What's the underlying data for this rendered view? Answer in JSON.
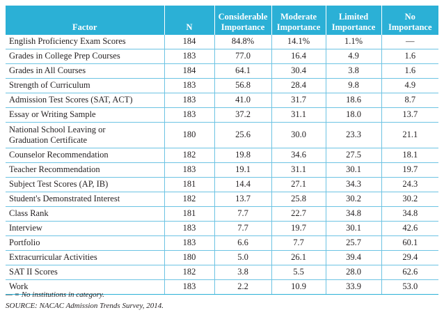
{
  "table": {
    "headers": {
      "factor": "Factor",
      "n": "N",
      "considerable": [
        "Considerable",
        "Importance"
      ],
      "moderate": [
        "Moderate",
        "Importance"
      ],
      "limited": [
        "Limited",
        "Importance"
      ],
      "no": [
        "No",
        "Importance"
      ]
    },
    "rows": [
      {
        "factor": "English Proficiency Exam Scores",
        "n": "184",
        "considerable": "84.8%",
        "moderate": "14.1%",
        "limited": "1.1%",
        "no": "—"
      },
      {
        "factor": "Grades in College Prep Courses",
        "n": "183",
        "considerable": "77.0",
        "moderate": "16.4",
        "limited": "4.9",
        "no": "1.6"
      },
      {
        "factor": "Grades in All Courses",
        "n": "184",
        "considerable": "64.1",
        "moderate": "30.4",
        "limited": "3.8",
        "no": "1.6"
      },
      {
        "factor": "Strength of Curriculum",
        "n": "183",
        "considerable": "56.8",
        "moderate": "28.4",
        "limited": "9.8",
        "no": "4.9"
      },
      {
        "factor": "Admission Test Scores (SAT, ACT)",
        "n": "183",
        "considerable": "41.0",
        "moderate": "31.7",
        "limited": "18.6",
        "no": "8.7"
      },
      {
        "factor": "Essay or Writing Sample",
        "n": "183",
        "considerable": "37.2",
        "moderate": "31.1",
        "limited": "18.0",
        "no": "13.7"
      },
      {
        "factor": "National School Leaving or Graduation Certificate",
        "factor_lines": [
          "National School Leaving or",
          "Graduation Certificate"
        ],
        "n": "180",
        "considerable": "25.6",
        "moderate": "30.0",
        "limited": "23.3",
        "no": "21.1",
        "tall": true
      },
      {
        "factor": "Counselor Recommendation",
        "n": "182",
        "considerable": "19.8",
        "moderate": "34.6",
        "limited": "27.5",
        "no": "18.1"
      },
      {
        "factor": "Teacher Recommendation",
        "n": "183",
        "considerable": "19.1",
        "moderate": "31.1",
        "limited": "30.1",
        "no": "19.7"
      },
      {
        "factor": "Subject Test Scores (AP, IB)",
        "n": "181",
        "considerable": "14.4",
        "moderate": "27.1",
        "limited": "34.3",
        "no": "24.3"
      },
      {
        "factor": "Student's Demonstrated Interest",
        "n": "182",
        "considerable": "13.7",
        "moderate": "25.8",
        "limited": "30.2",
        "no": "30.2"
      },
      {
        "factor": "Class Rank",
        "n": "181",
        "considerable": "7.7",
        "moderate": "22.7",
        "limited": "34.8",
        "no": "34.8"
      },
      {
        "factor": "Interview",
        "n": "183",
        "considerable": "7.7",
        "moderate": "19.7",
        "limited": "30.1",
        "no": "42.6"
      },
      {
        "factor": "Portfolio",
        "n": "183",
        "considerable": "6.6",
        "moderate": "7.7",
        "limited": "25.7",
        "no": "60.1"
      },
      {
        "factor": "Extracurricular Activities",
        "n": "180",
        "considerable": "5.0",
        "moderate": "26.1",
        "limited": "39.4",
        "no": "29.4"
      },
      {
        "factor": "SAT II Scores",
        "n": "182",
        "considerable": "3.8",
        "moderate": "5.5",
        "limited": "28.0",
        "no": "62.6"
      },
      {
        "factor": "Work",
        "n": "183",
        "considerable": "2.2",
        "moderate": "10.9",
        "limited": "33.9",
        "no": "53.0"
      }
    ]
  },
  "footnotes": {
    "legend": "— = No institutions in category.",
    "source": "SOURCE: NACAC Admission Trends Survey, 2014."
  },
  "colors": {
    "header_bg": "#2bb0d6",
    "header_text": "#ffffff",
    "rule": "#6cc3e3"
  }
}
